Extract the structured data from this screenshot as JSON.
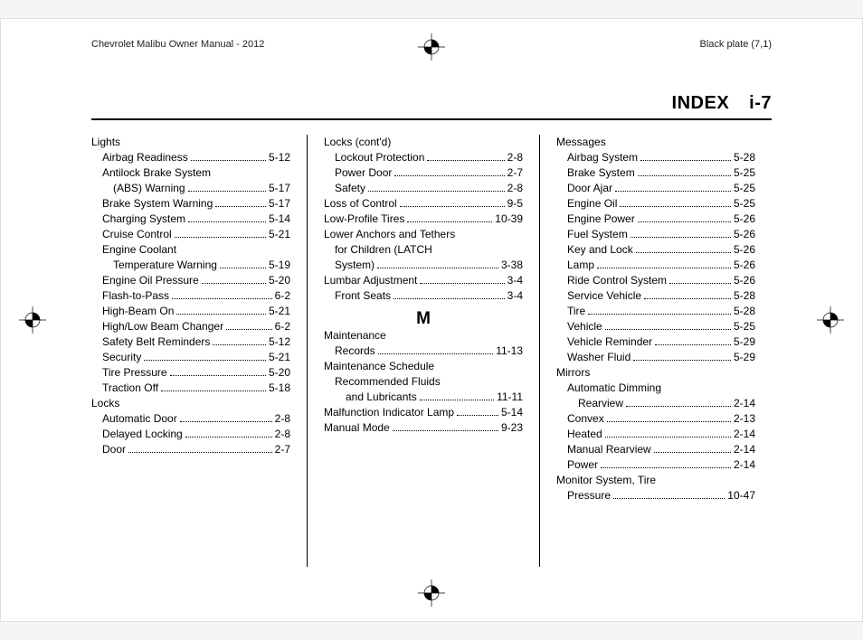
{
  "header": {
    "left": "Chevrolet Malibu Owner Manual - 2012",
    "right": "Black plate (7,1)"
  },
  "section": {
    "label": "INDEX",
    "page": "i-7"
  },
  "columns": [
    {
      "items": [
        {
          "type": "plain",
          "indent": 0,
          "label": "Lights"
        },
        {
          "type": "row",
          "indent": 1,
          "label": "Airbag Readiness",
          "pg": "5-12"
        },
        {
          "type": "plain",
          "indent": 1,
          "label": "Antilock Brake System"
        },
        {
          "type": "row",
          "indent": 2,
          "label": "(ABS) Warning",
          "pg": "5-17"
        },
        {
          "type": "row",
          "indent": 1,
          "label": "Brake System Warning",
          "pg": "5-17"
        },
        {
          "type": "row",
          "indent": 1,
          "label": "Charging System",
          "pg": "5-14"
        },
        {
          "type": "row",
          "indent": 1,
          "label": "Cruise Control",
          "pg": "5-21"
        },
        {
          "type": "plain",
          "indent": 1,
          "label": "Engine Coolant"
        },
        {
          "type": "row",
          "indent": 2,
          "label": "Temperature Warning",
          "pg": "5-19"
        },
        {
          "type": "row",
          "indent": 1,
          "label": "Engine Oil Pressure",
          "pg": "5-20"
        },
        {
          "type": "row",
          "indent": 1,
          "label": "Flash-to-Pass",
          "pg": "6-2"
        },
        {
          "type": "row",
          "indent": 1,
          "label": "High-Beam On",
          "pg": "5-21"
        },
        {
          "type": "row",
          "indent": 1,
          "label": "High/Low Beam Changer",
          "pg": "6-2"
        },
        {
          "type": "row",
          "indent": 1,
          "label": "Safety Belt Reminders",
          "pg": "5-12"
        },
        {
          "type": "row",
          "indent": 1,
          "label": "Security",
          "pg": "5-21"
        },
        {
          "type": "row",
          "indent": 1,
          "label": "Tire Pressure",
          "pg": "5-20"
        },
        {
          "type": "row",
          "indent": 1,
          "label": "Traction Off",
          "pg": "5-18"
        },
        {
          "type": "plain",
          "indent": 0,
          "label": "Locks"
        },
        {
          "type": "row",
          "indent": 1,
          "label": "Automatic Door",
          "pg": "2-8"
        },
        {
          "type": "row",
          "indent": 1,
          "label": "Delayed Locking",
          "pg": "2-8"
        },
        {
          "type": "row",
          "indent": 1,
          "label": "Door",
          "pg": "2-7"
        }
      ]
    },
    {
      "items": [
        {
          "type": "plain",
          "indent": 0,
          "label": "Locks (cont'd)"
        },
        {
          "type": "row",
          "indent": 1,
          "label": "Lockout Protection",
          "pg": "2-8"
        },
        {
          "type": "row",
          "indent": 1,
          "label": "Power Door",
          "pg": "2-7"
        },
        {
          "type": "row",
          "indent": 1,
          "label": "Safety",
          "pg": "2-8"
        },
        {
          "type": "row",
          "indent": 0,
          "label": "Loss of Control",
          "pg": "9-5"
        },
        {
          "type": "row",
          "indent": 0,
          "label": "Low-Profile Tires",
          "pg": "10-39"
        },
        {
          "type": "plain",
          "indent": 0,
          "label": "Lower Anchors and Tethers"
        },
        {
          "type": "plain",
          "indent": 1,
          "label": "for Children (LATCH"
        },
        {
          "type": "row",
          "indent": 1,
          "label": "System)",
          "pg": "3-38"
        },
        {
          "type": "row",
          "indent": 0,
          "label": "Lumbar Adjustment",
          "pg": "3-4"
        },
        {
          "type": "row",
          "indent": 1,
          "label": "Front Seats",
          "pg": "3-4"
        },
        {
          "type": "letter",
          "label": "M"
        },
        {
          "type": "plain",
          "indent": 0,
          "label": "Maintenance"
        },
        {
          "type": "row",
          "indent": 1,
          "label": "Records",
          "pg": "11-13"
        },
        {
          "type": "plain",
          "indent": 0,
          "label": "Maintenance Schedule"
        },
        {
          "type": "plain",
          "indent": 1,
          "label": "Recommended Fluids"
        },
        {
          "type": "row",
          "indent": 2,
          "label": "and Lubricants",
          "pg": "11-11"
        },
        {
          "type": "row",
          "indent": 0,
          "label": "Malfunction Indicator Lamp",
          "pg": "5-14"
        },
        {
          "type": "row",
          "indent": 0,
          "label": "Manual Mode",
          "pg": "9-23"
        }
      ]
    },
    {
      "items": [
        {
          "type": "plain",
          "indent": 0,
          "label": "Messages"
        },
        {
          "type": "row",
          "indent": 1,
          "label": "Airbag System",
          "pg": "5-28"
        },
        {
          "type": "row",
          "indent": 1,
          "label": "Brake System",
          "pg": "5-25"
        },
        {
          "type": "row",
          "indent": 1,
          "label": "Door Ajar",
          "pg": "5-25"
        },
        {
          "type": "row",
          "indent": 1,
          "label": "Engine Oil",
          "pg": "5-25"
        },
        {
          "type": "row",
          "indent": 1,
          "label": "Engine Power",
          "pg": "5-26"
        },
        {
          "type": "row",
          "indent": 1,
          "label": "Fuel System",
          "pg": "5-26"
        },
        {
          "type": "row",
          "indent": 1,
          "label": "Key and Lock",
          "pg": "5-26"
        },
        {
          "type": "row",
          "indent": 1,
          "label": "Lamp",
          "pg": "5-26"
        },
        {
          "type": "row",
          "indent": 1,
          "label": "Ride Control System",
          "pg": "5-26"
        },
        {
          "type": "row",
          "indent": 1,
          "label": "Service Vehicle",
          "pg": "5-28"
        },
        {
          "type": "row",
          "indent": 1,
          "label": "Tire",
          "pg": "5-28"
        },
        {
          "type": "row",
          "indent": 1,
          "label": "Vehicle",
          "pg": "5-25"
        },
        {
          "type": "row",
          "indent": 1,
          "label": "Vehicle Reminder",
          "pg": "5-29"
        },
        {
          "type": "row",
          "indent": 1,
          "label": "Washer Fluid",
          "pg": "5-29"
        },
        {
          "type": "plain",
          "indent": 0,
          "label": "Mirrors"
        },
        {
          "type": "plain",
          "indent": 1,
          "label": "Automatic Dimming"
        },
        {
          "type": "row",
          "indent": 2,
          "label": "Rearview",
          "pg": "2-14"
        },
        {
          "type": "row",
          "indent": 1,
          "label": "Convex",
          "pg": "2-13"
        },
        {
          "type": "row",
          "indent": 1,
          "label": "Heated",
          "pg": "2-14"
        },
        {
          "type": "row",
          "indent": 1,
          "label": "Manual Rearview",
          "pg": "2-14"
        },
        {
          "type": "row",
          "indent": 1,
          "label": "Power",
          "pg": "2-14"
        },
        {
          "type": "plain",
          "indent": 0,
          "label": "Monitor System, Tire"
        },
        {
          "type": "row",
          "indent": 1,
          "label": "Pressure",
          "pg": "10-47"
        }
      ]
    }
  ]
}
